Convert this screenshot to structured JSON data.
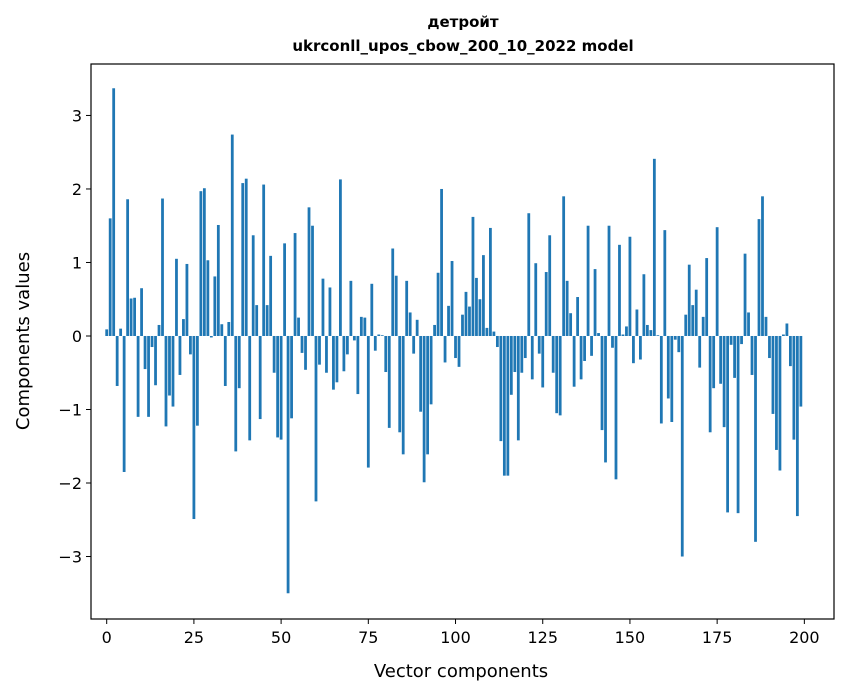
{
  "chart_data": {
    "type": "bar",
    "title": "детройт",
    "subtitle": "ukrconll_upos_cbow_200_10_2022 model",
    "xlabel": "Vector components",
    "ylabel": "Components values",
    "xlim": [
      -4.5,
      208.5
    ],
    "ylim": [
      -3.85,
      3.7
    ],
    "xticks": [
      0,
      25,
      50,
      75,
      100,
      125,
      150,
      175,
      200
    ],
    "xtick_labels": [
      "0",
      "25",
      "50",
      "75",
      "100",
      "125",
      "150",
      "175",
      "200"
    ],
    "yticks": [
      -3,
      -2,
      -1,
      0,
      1,
      2,
      3
    ],
    "ytick_labels": [
      "−3",
      "−2",
      "−1",
      "0",
      "1",
      "2",
      "3"
    ],
    "grid": false,
    "bar_color": "#1f77b4",
    "x": [
      0,
      1,
      2,
      3,
      4,
      5,
      6,
      7,
      8,
      9,
      10,
      11,
      12,
      13,
      14,
      15,
      16,
      17,
      18,
      19,
      20,
      21,
      22,
      23,
      24,
      25,
      26,
      27,
      28,
      29,
      30,
      31,
      32,
      33,
      34,
      35,
      36,
      37,
      38,
      39,
      40,
      41,
      42,
      43,
      44,
      45,
      46,
      47,
      48,
      49,
      50,
      51,
      52,
      53,
      54,
      55,
      56,
      57,
      58,
      59,
      60,
      61,
      62,
      63,
      64,
      65,
      66,
      67,
      68,
      69,
      70,
      71,
      72,
      73,
      74,
      75,
      76,
      77,
      78,
      79,
      80,
      81,
      82,
      83,
      84,
      85,
      86,
      87,
      88,
      89,
      90,
      91,
      92,
      93,
      94,
      95,
      96,
      97,
      98,
      99,
      100,
      101,
      102,
      103,
      104,
      105,
      106,
      107,
      108,
      109,
      110,
      111,
      112,
      113,
      114,
      115,
      116,
      117,
      118,
      119,
      120,
      121,
      122,
      123,
      124,
      125,
      126,
      127,
      128,
      129,
      130,
      131,
      132,
      133,
      134,
      135,
      136,
      137,
      138,
      139,
      140,
      141,
      142,
      143,
      144,
      145,
      146,
      147,
      148,
      149,
      150,
      151,
      152,
      153,
      154,
      155,
      156,
      157,
      158,
      159,
      160,
      161,
      162,
      163,
      164,
      165,
      166,
      167,
      168,
      169,
      170,
      171,
      172,
      173,
      174,
      175,
      176,
      177,
      178,
      179,
      180,
      181,
      182,
      183,
      184,
      185,
      186,
      187,
      188,
      189,
      190,
      191,
      192,
      193,
      194,
      195,
      196,
      197,
      198,
      199
    ],
    "values": [
      0.09,
      1.6,
      3.37,
      -0.68,
      0.1,
      -1.85,
      1.86,
      0.51,
      0.52,
      -1.1,
      0.65,
      -0.45,
      -1.1,
      -0.15,
      -0.67,
      0.15,
      1.87,
      -1.23,
      -0.81,
      -0.96,
      1.05,
      -0.53,
      0.23,
      0.98,
      -0.25,
      -2.49,
      -1.22,
      1.97,
      2.01,
      1.03,
      -0.02,
      0.81,
      1.51,
      0.16,
      -0.68,
      0.19,
      2.74,
      -1.57,
      -0.71,
      2.08,
      2.14,
      -1.42,
      1.37,
      0.42,
      -1.13,
      2.06,
      0.42,
      1.09,
      -0.5,
      -1.38,
      -1.41,
      1.26,
      -3.5,
      -1.12,
      1.4,
      0.25,
      -0.23,
      -0.46,
      1.75,
      1.5,
      -2.25,
      -0.39,
      0.78,
      -0.5,
      0.66,
      -0.73,
      -0.63,
      2.13,
      -0.48,
      -0.25,
      0.75,
      -0.06,
      -0.79,
      0.26,
      0.25,
      -1.79,
      0.71,
      -0.2,
      0.02,
      0.01,
      -0.49,
      -1.25,
      1.19,
      0.82,
      -1.31,
      -1.61,
      0.75,
      0.32,
      -0.24,
      0.22,
      -1.03,
      -1.99,
      -1.61,
      -0.93,
      0.15,
      0.86,
      2.0,
      -0.36,
      0.41,
      1.02,
      -0.3,
      -0.42,
      0.29,
      0.6,
      0.4,
      1.62,
      0.79,
      0.5,
      1.1,
      0.11,
      1.47,
      0.06,
      -0.15,
      -1.43,
      -1.9,
      -1.9,
      -0.8,
      -0.49,
      -1.42,
      -0.5,
      -0.3,
      1.67,
      -0.59,
      0.99,
      -0.24,
      -0.7,
      0.87,
      1.37,
      -0.5,
      -1.05,
      -1.08,
      1.9,
      0.75,
      0.31,
      -0.69,
      0.53,
      -0.59,
      -0.34,
      1.5,
      -0.27,
      0.91,
      0.04,
      -1.28,
      -1.72,
      1.5,
      -0.16,
      -1.95,
      1.24,
      0.02,
      0.13,
      1.35,
      -0.37,
      0.36,
      -0.32,
      0.84,
      0.15,
      0.08,
      2.41,
      0.01,
      -1.19,
      1.44,
      -0.85,
      -1.17,
      -0.05,
      -0.22,
      -3.0,
      0.29,
      0.97,
      0.42,
      0.63,
      -0.43,
      0.26,
      1.06,
      -1.31,
      -0.71,
      1.48,
      -0.65,
      -1.24,
      -2.4,
      -0.12,
      -0.57,
      -2.41,
      -0.11,
      1.12,
      0.32,
      -0.53,
      -2.8,
      1.59,
      1.9,
      0.26,
      -0.3,
      -1.06,
      -1.55,
      -1.83,
      0.02,
      0.17,
      -0.41,
      -1.41,
      -2.45,
      -0.96
    ]
  }
}
